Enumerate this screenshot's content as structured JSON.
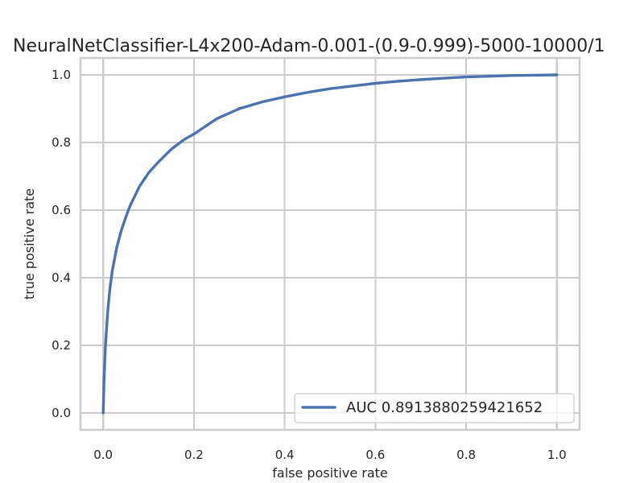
{
  "chart_data": {
    "type": "line",
    "title": "NeuralNetClassifier-L4x200-Adam-0.001-(0.9-0.999)-5000-10000/1",
    "xlabel": "false positive rate",
    "ylabel": "true positive rate",
    "xlim": [
      -0.05,
      1.05
    ],
    "ylim": [
      -0.05,
      1.05
    ],
    "xticks": [
      0.0,
      0.2,
      0.4,
      0.6,
      0.8,
      1.0
    ],
    "yticks": [
      0.0,
      0.2,
      0.4,
      0.6,
      0.8,
      1.0
    ],
    "xtick_labels": [
      "0.0",
      "0.2",
      "0.4",
      "0.6",
      "0.8",
      "1.0"
    ],
    "ytick_labels": [
      "0.0",
      "0.2",
      "0.4",
      "0.6",
      "0.8",
      "1.0"
    ],
    "grid": true,
    "legend_position": "lower-right",
    "series": [
      {
        "name": "AUC 0.8913880259421652",
        "color": "#4c72b0",
        "x": [
          0.0,
          0.002,
          0.005,
          0.01,
          0.015,
          0.02,
          0.03,
          0.04,
          0.05,
          0.06,
          0.08,
          0.1,
          0.12,
          0.15,
          0.18,
          0.2,
          0.25,
          0.3,
          0.35,
          0.4,
          0.45,
          0.5,
          0.55,
          0.6,
          0.65,
          0.7,
          0.75,
          0.8,
          0.85,
          0.9,
          0.95,
          1.0
        ],
        "y": [
          0.0,
          0.1,
          0.2,
          0.3,
          0.37,
          0.42,
          0.49,
          0.54,
          0.58,
          0.615,
          0.67,
          0.71,
          0.74,
          0.78,
          0.81,
          0.825,
          0.87,
          0.9,
          0.92,
          0.935,
          0.948,
          0.959,
          0.967,
          0.975,
          0.981,
          0.986,
          0.99,
          0.994,
          0.996,
          0.998,
          0.999,
          1.0
        ]
      }
    ]
  }
}
